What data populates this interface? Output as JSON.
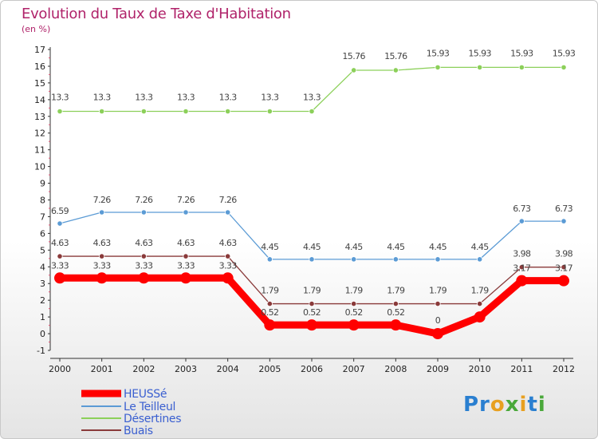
{
  "logo": "Proxiti",
  "chart_data": {
    "type": "line",
    "title": "Evolution du Taux de Taxe d'Habitation",
    "unit_label": "(en %)",
    "x": [
      "2000",
      "2001",
      "2002",
      "2003",
      "2004",
      "2005",
      "2006",
      "2007",
      "2008",
      "2009",
      "2010",
      "2011",
      "2012"
    ],
    "ylim": [
      -1,
      17
    ],
    "yticks": [
      -1,
      0,
      1,
      2,
      3,
      4,
      5,
      6,
      7,
      8,
      9,
      10,
      11,
      12,
      13,
      14,
      15,
      16,
      17
    ],
    "grid": false,
    "legend_position": "bottom-left",
    "series": [
      {
        "name": "HEUSSé",
        "color": "#ff0000",
        "values": [
          3.33,
          3.33,
          3.33,
          3.33,
          3.33,
          0.52,
          0.52,
          0.52,
          0.52,
          0,
          1,
          3.17,
          3.17
        ],
        "labels": [
          "3.33",
          "3.33",
          "3.33",
          "3.33",
          "3.33",
          "0.52",
          "0.52",
          "0.52",
          "0.52",
          "0",
          "",
          "3.17",
          "3.17"
        ]
      },
      {
        "name": "Le Teilleul",
        "color": "#5b9bd5",
        "values": [
          6.59,
          7.26,
          7.26,
          7.26,
          7.26,
          4.45,
          4.45,
          4.45,
          4.45,
          4.45,
          4.45,
          6.73,
          6.73
        ],
        "labels": [
          "6.59",
          "7.26",
          "7.26",
          "7.26",
          "7.26",
          "4.45",
          "4.45",
          "4.45",
          "4.45",
          "4.45",
          "4.45",
          "6.73",
          "6.73"
        ]
      },
      {
        "name": "Désertines",
        "color": "#8cd05a",
        "values": [
          13.3,
          13.3,
          13.3,
          13.3,
          13.3,
          13.3,
          13.3,
          15.76,
          15.76,
          15.93,
          15.93,
          15.93,
          15.93
        ],
        "labels": [
          "13.3",
          "13.3",
          "13.3",
          "13.3",
          "13.3",
          "13.3",
          "13.3",
          "15.76",
          "15.76",
          "15.93",
          "15.93",
          "15.93",
          "15.93"
        ]
      },
      {
        "name": "Buais",
        "color": "#8a3a3a",
        "values": [
          4.63,
          4.63,
          4.63,
          4.63,
          4.63,
          1.79,
          1.79,
          1.79,
          1.79,
          1.79,
          1.79,
          3.98,
          3.98
        ],
        "labels": [
          "4.63",
          "4.63",
          "4.63",
          "4.63",
          "4.63",
          "1.79",
          "1.79",
          "1.79",
          "1.79",
          "1.79",
          "1.79",
          "3.98",
          "3.98"
        ]
      }
    ]
  }
}
